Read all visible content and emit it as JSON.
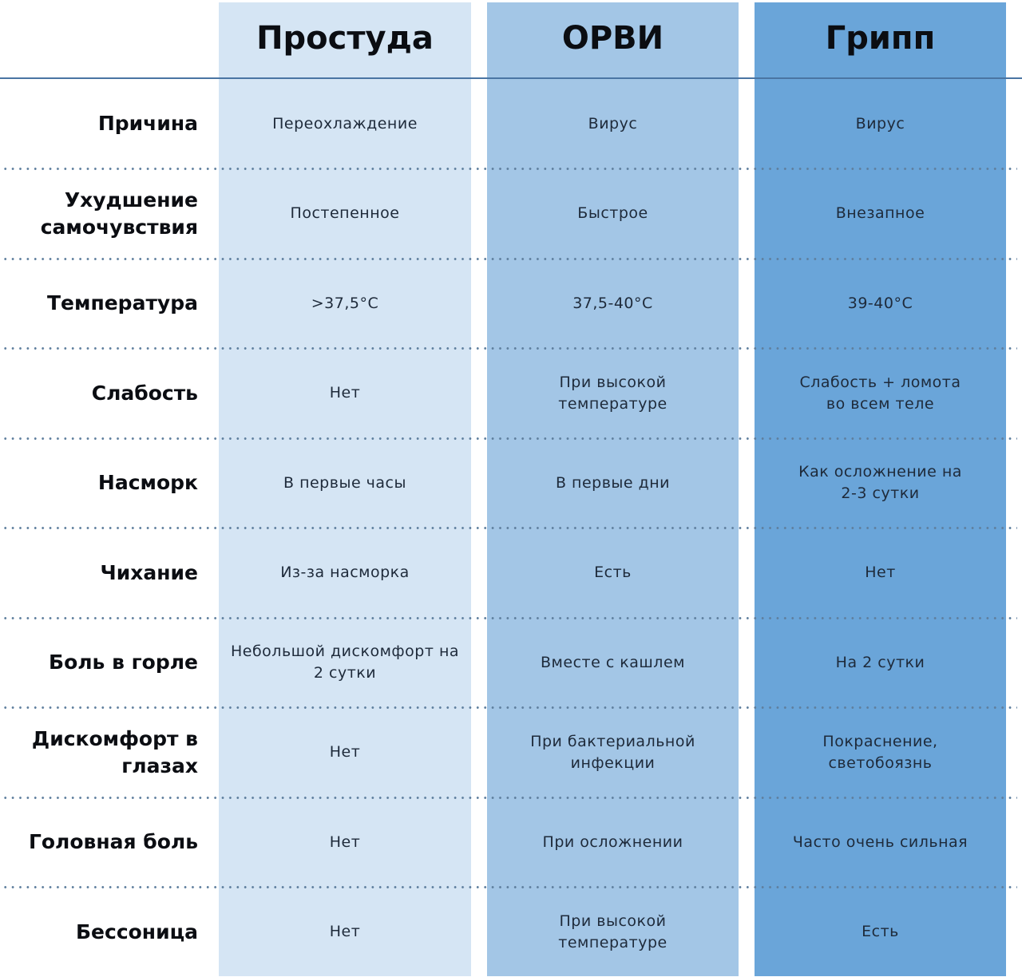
{
  "columns": [
    "Простуда",
    "ОРВИ",
    "Грипп"
  ],
  "colors": {
    "col1": "#d5e5f4",
    "col2": "#a3c6e6",
    "col3": "#6aa5d9"
  },
  "rows": [
    {
      "label": "Причина",
      "values": [
        "Переохлаждение",
        "Вирус",
        "Вирус"
      ]
    },
    {
      "label": "Ухудшение самочувствия",
      "values": [
        "Постепенное",
        "Быстрое",
        "Внезапное"
      ]
    },
    {
      "label": "Температура",
      "values": [
        ">37,5°C",
        "37,5-40°C",
        "39-40°C"
      ]
    },
    {
      "label": "Слабость",
      "values": [
        "Нет",
        "При высокой температуре",
        "Слабость + ломота во всем теле"
      ]
    },
    {
      "label": "Насморк",
      "values": [
        "В первые часы",
        "В первые дни",
        "Как осложнение на 2-3 сутки"
      ]
    },
    {
      "label": "Чихание",
      "values": [
        "Из-за насморка",
        "Есть",
        "Нет"
      ]
    },
    {
      "label": "Боль в горле",
      "values": [
        "Небольшой дискомфорт на 2 сутки",
        "Вместе с кашлем",
        "На 2 сутки"
      ]
    },
    {
      "label": "Дискомфорт в глазах",
      "values": [
        "Нет",
        "При бактериальной инфекции",
        "Покраснение, светобоязнь"
      ]
    },
    {
      "label": "Головная боль",
      "values": [
        "Нет",
        "При осложнении",
        "Часто очень сильная"
      ]
    },
    {
      "label": "Бессоница",
      "values": [
        "Нет",
        "При высокой температуре",
        "Есть"
      ]
    }
  ]
}
